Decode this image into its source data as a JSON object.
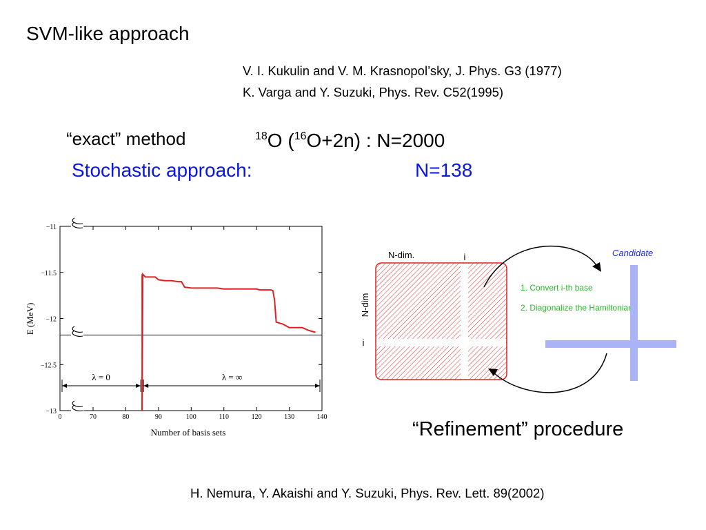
{
  "slide": {
    "title": "SVM-like approach",
    "references": [
      "V. I. Kukulin and V. M. Krasnopol’sky, J. Phys. G3 (1977)",
      "K. Varga and Y. Suzuki, Phys. Rev. C52(1995)"
    ],
    "exact_label": "“exact” method",
    "o18": {
      "mass1": "18",
      "text1": "O (",
      "mass2": "16",
      "text2": "O+2n) : N=2000"
    },
    "stochastic_label": "Stochastic approach:",
    "stochastic_n": "N=138",
    "refinement_label": "“Refinement” procedure",
    "footer_ref": "H. Nemura, Y. Akaishi and Y. Suzuki, Phys. Rev. Lett. 89(2002)",
    "colors": {
      "blue_text": "#0a17e0",
      "chart_line": "#e02020",
      "candidate_blue": "#1a2de0",
      "step_green": "#22bb22"
    }
  },
  "diagram": {
    "ndim_top": "N-dim.",
    "ndim_side": "N-dim",
    "i_top": "i",
    "i_side": "i",
    "candidate": "Candidate",
    "step1": "1. Convert i-th base",
    "step2": "2. Diagonalize the Hamiltonian"
  },
  "chart_data": {
    "type": "line",
    "xlabel": "Number of basis sets",
    "ylabel": "E (MeV)",
    "x_ticks": [
      "0",
      "70",
      "80",
      "90",
      "100",
      "110",
      "120",
      "130",
      "140"
    ],
    "y_ticks": [
      "−11",
      "−11.5",
      "−12",
      "−12.5",
      "−13"
    ],
    "x_break": true,
    "y_breaks": true,
    "ylim": [
      -13,
      -11
    ],
    "xlim": [
      65,
      140
    ],
    "exact_energy": -12.18,
    "lambda_left": "λ = 0",
    "lambda_right": "λ = ∞",
    "lambda_boundary_x": 85,
    "series": [
      {
        "x": [
          85,
          85.2,
          86,
          88,
          89,
          90,
          92,
          94,
          96,
          97,
          98,
          100,
          102,
          104,
          106,
          108,
          110,
          112,
          114,
          116,
          118,
          120,
          121,
          122,
          124,
          124.5,
          125,
          125.5,
          126,
          127,
          128,
          130,
          132,
          134,
          136,
          138
        ],
        "y": [
          -13,
          -11.52,
          -11.55,
          -11.55,
          -11.55,
          -11.58,
          -11.59,
          -11.59,
          -11.6,
          -11.6,
          -11.66,
          -11.67,
          -11.67,
          -11.67,
          -11.67,
          -11.67,
          -11.68,
          -11.68,
          -11.68,
          -11.68,
          -11.68,
          -11.68,
          -11.69,
          -11.69,
          -11.69,
          -11.69,
          -11.7,
          -11.8,
          -12.04,
          -12.05,
          -12.06,
          -12.1,
          -12.1,
          -12.1,
          -12.13,
          -12.15
        ]
      }
    ],
    "grid": false
  }
}
